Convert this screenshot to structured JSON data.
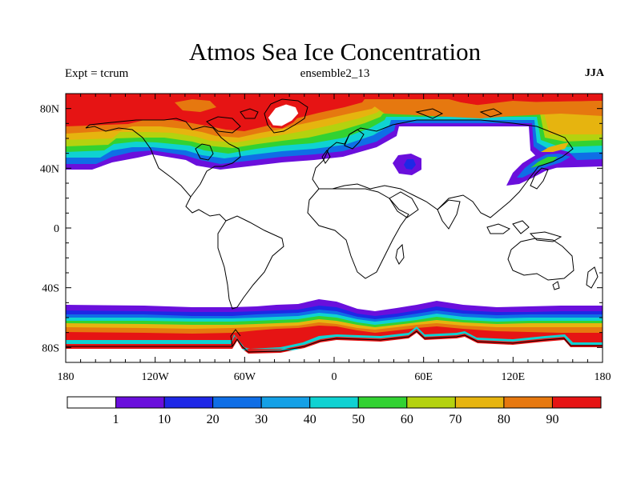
{
  "header": {
    "title": "Atmos Sea Ice Concentration",
    "left_label": "Expt = tcrum",
    "center_label": "ensemble2_13",
    "right_label": "JJA"
  },
  "map": {
    "lon_range": [
      -180,
      180
    ],
    "lat_range": [
      -90,
      90
    ],
    "lon_ticks": [
      {
        "value": -180,
        "label": "180"
      },
      {
        "value": -120,
        "label": "120W"
      },
      {
        "value": -60,
        "label": "60W"
      },
      {
        "value": 0,
        "label": "0"
      },
      {
        "value": 60,
        "label": "60E"
      },
      {
        "value": 120,
        "label": "120E"
      },
      {
        "value": 180,
        "label": "180"
      }
    ],
    "lat_ticks": [
      {
        "value": 80,
        "label": "80N"
      },
      {
        "value": 40,
        "label": "40N"
      },
      {
        "value": 0,
        "label": "0"
      },
      {
        "value": -40,
        "label": "40S"
      },
      {
        "value": -80,
        "label": "80S"
      }
    ],
    "open_water_color": "#ffffff",
    "coastline_color": "#000000"
  },
  "colorbar": {
    "colors": [
      "#ffffff",
      "#6a0fdc",
      "#1e28e6",
      "#0f6ee6",
      "#14a0e6",
      "#0fd2d2",
      "#32d232",
      "#b4d20f",
      "#e6b40f",
      "#e6780f",
      "#e61414"
    ],
    "labels": [
      "1",
      "10",
      "20",
      "30",
      "40",
      "50",
      "60",
      "70",
      "80",
      "90"
    ]
  }
}
